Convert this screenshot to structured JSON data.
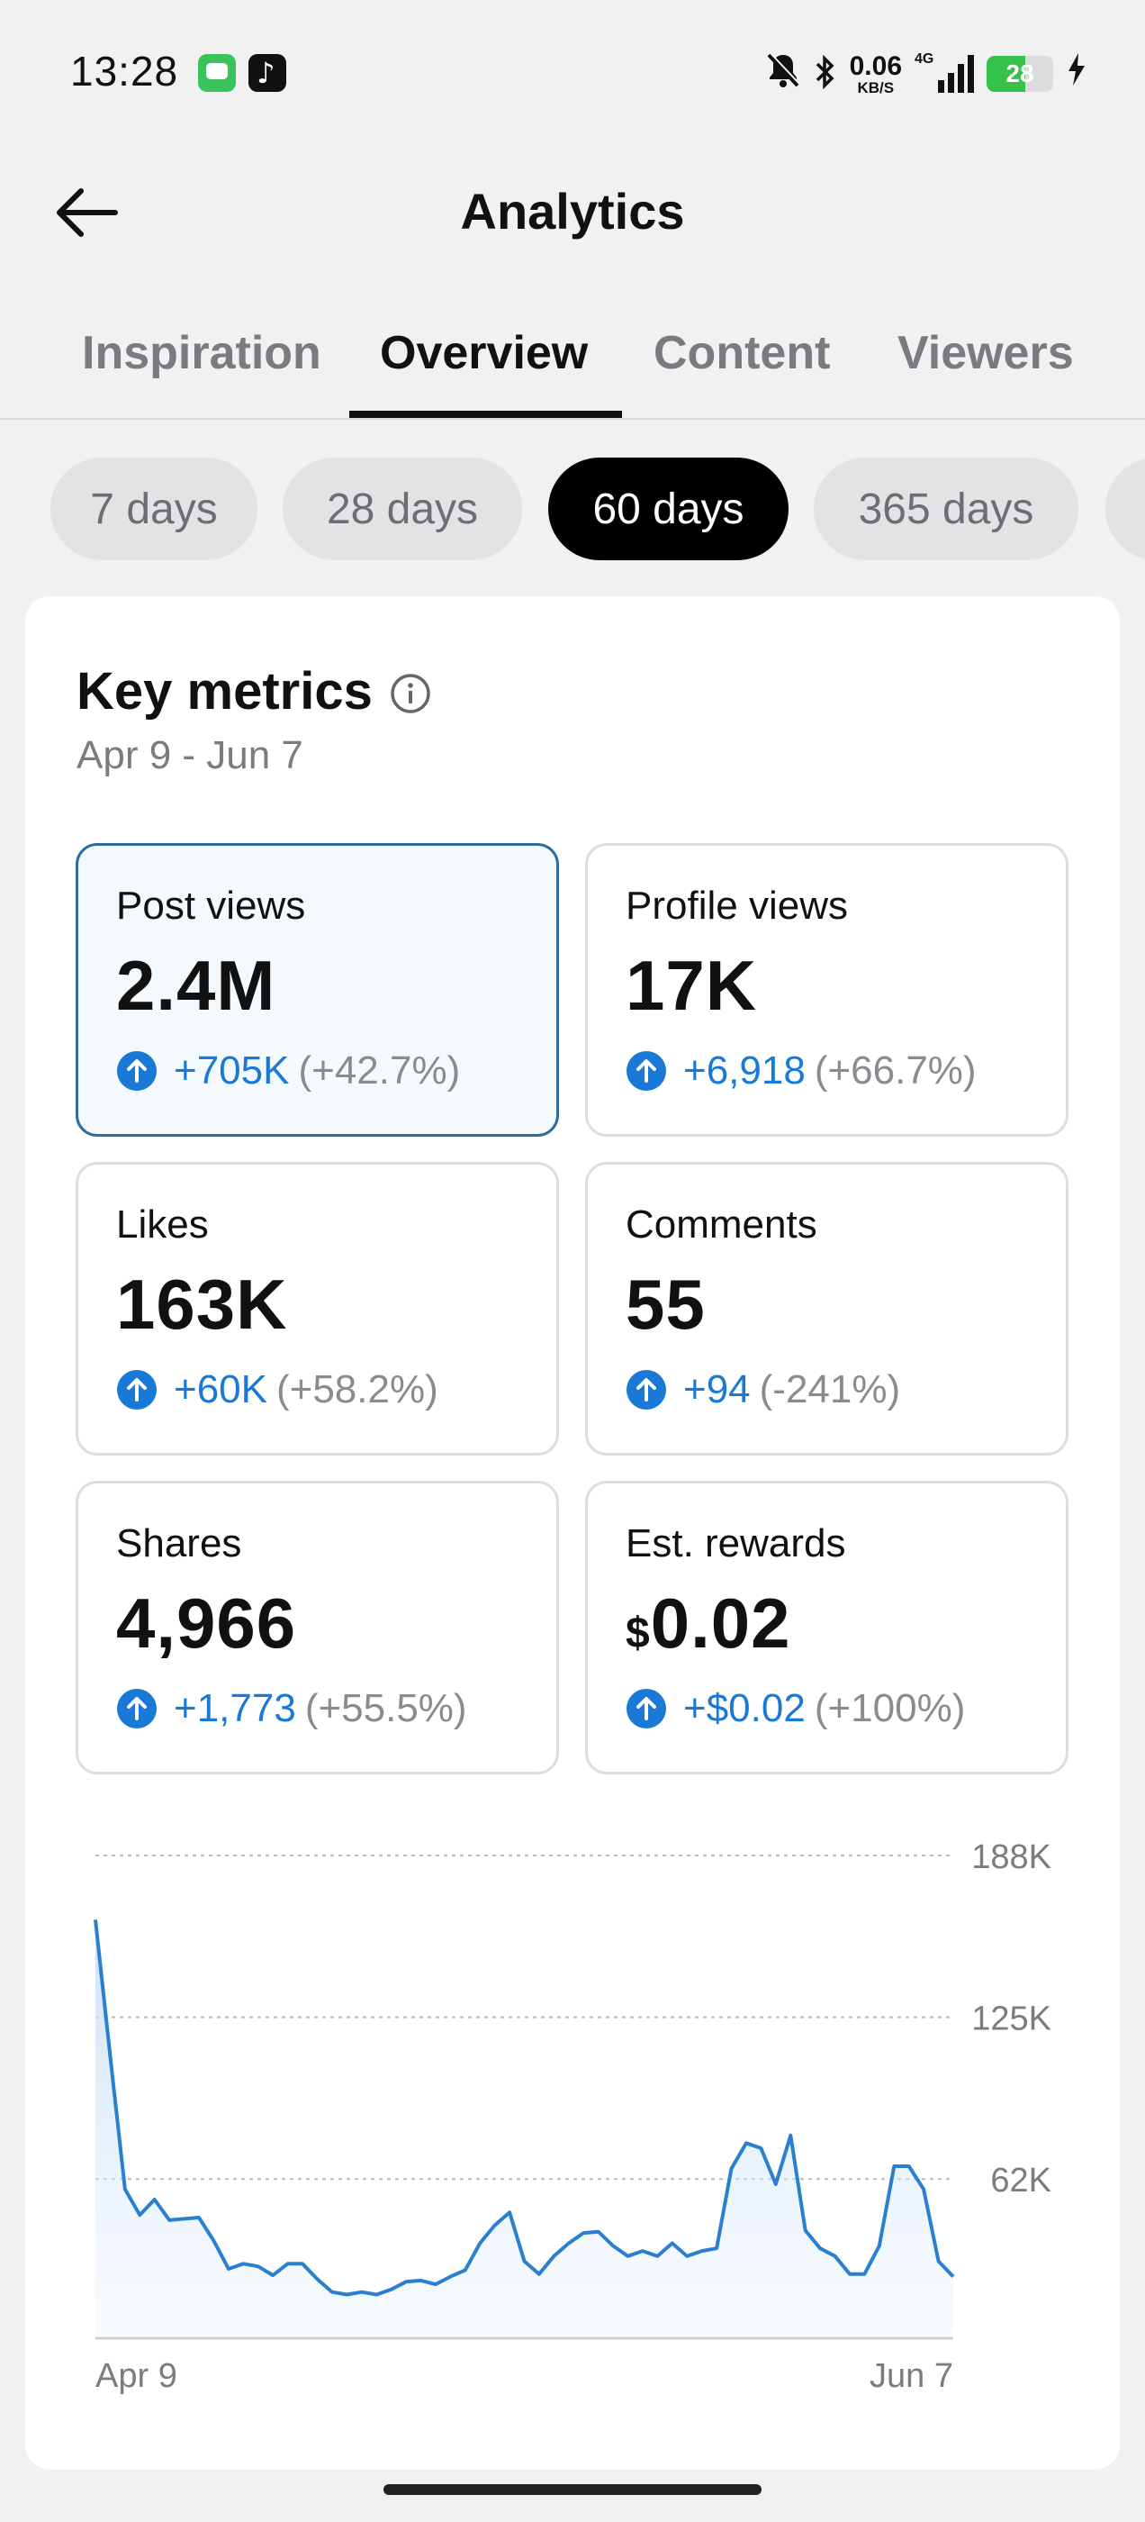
{
  "status_bar": {
    "time": "13:28",
    "net_speed_value": "0.06",
    "net_speed_unit": "KB/S",
    "network_type": "4G",
    "battery": "28"
  },
  "header": {
    "title": "Analytics"
  },
  "tabs": [
    {
      "label": "Inspiration",
      "active": false
    },
    {
      "label": "Overview",
      "active": true
    },
    {
      "label": "Content",
      "active": false
    },
    {
      "label": "Viewers",
      "active": false
    }
  ],
  "range_chips": [
    {
      "label": "7 days",
      "active": false
    },
    {
      "label": "28 days",
      "active": false
    },
    {
      "label": "60 days",
      "active": true
    },
    {
      "label": "365 days",
      "active": false
    }
  ],
  "key_metrics": {
    "title": "Key metrics",
    "date_range": "Apr 9 - Jun 7",
    "cards": [
      {
        "label": "Post views",
        "value": "2.4M",
        "delta": "+705K",
        "pct": "(+42.7%)",
        "selected": true
      },
      {
        "label": "Profile views",
        "value": "17K",
        "delta": "+6,918",
        "pct": "(+66.7%)"
      },
      {
        "label": "Likes",
        "value": "163K",
        "delta": "+60K",
        "pct": "(+58.2%)"
      },
      {
        "label": "Comments",
        "value": "55",
        "delta": "+94",
        "pct": "(-241%)"
      },
      {
        "label": "Shares",
        "value": "4,966",
        "delta": "+1,773",
        "pct": "(+55.5%)"
      },
      {
        "label": "Est. rewards",
        "value_currency": "$",
        "value": "0.02",
        "delta": "+$0.02",
        "pct": "(+100%)"
      }
    ]
  },
  "colors": {
    "accent_blue": "#1a79d6",
    "selected_border": "#2b6d9e",
    "chart_line": "#2a7fd0"
  },
  "chart_data": {
    "type": "area",
    "series": [
      {
        "values": [
          163000,
          110000,
          58000,
          48000,
          54000,
          46000,
          46500,
          47000,
          38000,
          27000,
          29000,
          28000,
          24500,
          29000,
          29000,
          23000,
          18000,
          17000,
          18000,
          17000,
          19000,
          22000,
          22500,
          21000,
          24000,
          26500,
          37000,
          44000,
          49000,
          30000,
          25000,
          32000,
          37000,
          41000,
          41500,
          36000,
          32000,
          34000,
          32000,
          37000,
          32000,
          34000,
          35000,
          66000,
          76000,
          74000,
          60000,
          79000,
          42000,
          35000,
          32000,
          25000,
          25000,
          36000,
          67000,
          67000,
          58000,
          30000,
          24000
        ]
      }
    ],
    "x_tick_labels": [
      "Apr 9",
      "Jun 7"
    ],
    "y_tick_labels": [
      "188K",
      "125K",
      "62K"
    ],
    "y_ticks": [
      188000,
      125000,
      62000
    ],
    "ylim": [
      0,
      188000
    ],
    "grid": true
  }
}
